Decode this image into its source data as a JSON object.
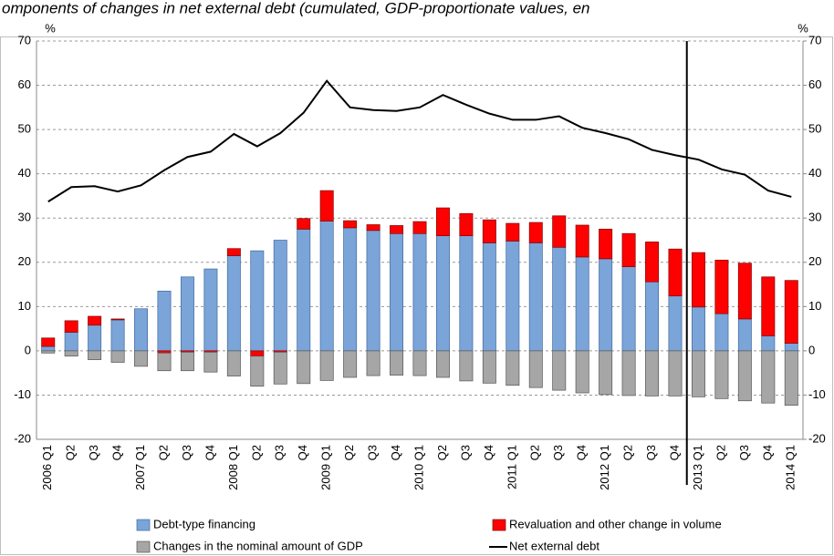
{
  "chart_data": {
    "type": "bar",
    "title": "omponents of changes in net external debt (cumulated, GDP-proportionate values, en",
    "y_unit": "%",
    "y2_unit": "%",
    "categories": [
      "2006 Q1",
      "Q2",
      "Q3",
      "Q4",
      "2007 Q1",
      "Q2",
      "Q3",
      "Q4",
      "2008 Q1",
      "Q2",
      "Q3",
      "Q4",
      "2009 Q1",
      "Q2",
      "Q3",
      "Q4",
      "2010 Q1",
      "Q2",
      "Q3",
      "Q4",
      "2011 Q1",
      "Q2",
      "Q3",
      "Q4",
      "2012 Q1",
      "Q2",
      "Q3",
      "Q4",
      "2013 Q1",
      "Q2",
      "Q3",
      "Q4",
      "2014 Q1"
    ],
    "series": [
      {
        "name": "Debt-type financing",
        "type": "bar",
        "color": "#7ba4d8",
        "values": [
          1.0,
          4.2,
          5.8,
          7.0,
          9.5,
          13.5,
          16.7,
          18.5,
          21.5,
          22.6,
          25.0,
          27.5,
          29.3,
          27.8,
          27.2,
          26.5,
          26.5,
          26.0,
          26.0,
          24.4,
          24.8,
          24.4,
          23.4,
          21.2,
          20.8,
          19.0,
          15.6,
          12.4,
          9.9,
          8.4,
          7.2,
          3.4,
          1.7
        ]
      },
      {
        "name": "Revaluation and other change in volume",
        "type": "bar",
        "color": "#ff0000",
        "values": [
          1.9,
          2.6,
          2.0,
          0.2,
          0.0,
          -0.5,
          -0.3,
          -0.3,
          1.6,
          -1.2,
          -0.3,
          2.4,
          6.9,
          1.6,
          1.3,
          1.8,
          2.7,
          6.3,
          5.0,
          5.2,
          4.0,
          4.6,
          7.1,
          7.2,
          6.7,
          7.5,
          9.0,
          10.6,
          12.3,
          12.1,
          12.6,
          13.3,
          14.2
        ]
      },
      {
        "name": "Changes in the nominal amount of GDP",
        "type": "bar",
        "color": "#a6a6a6",
        "values": [
          -0.5,
          -1.2,
          -2.0,
          -2.6,
          -3.5,
          -4.0,
          -4.2,
          -4.5,
          -5.7,
          -6.8,
          -7.2,
          -7.4,
          -6.7,
          -6.0,
          -5.6,
          -5.5,
          -5.6,
          -6.0,
          -6.8,
          -7.3,
          -7.8,
          -8.3,
          -8.9,
          -9.5,
          -9.9,
          -10.1,
          -10.2,
          -10.2,
          -10.4,
          -10.8,
          -11.3,
          -11.8,
          -12.3
        ]
      },
      {
        "name": "Net external debt",
        "type": "line",
        "color": "#000000",
        "values": [
          33.7,
          37.0,
          37.2,
          36.0,
          37.4,
          40.8,
          43.8,
          45.0,
          49.0,
          46.2,
          49.2,
          53.8,
          61.0,
          55.0,
          54.4,
          54.2,
          55.0,
          57.8,
          55.6,
          53.6,
          52.2,
          52.2,
          53.0,
          50.4,
          49.2,
          47.8,
          45.4,
          44.2,
          43.2,
          41.0,
          39.8,
          36.2,
          34.8
        ]
      }
    ],
    "ylim": [
      -20,
      70
    ],
    "yticks": [
      -20,
      -10,
      0,
      10,
      20,
      30,
      40,
      50,
      60,
      70
    ],
    "y2lim": [
      -20,
      70
    ],
    "y2ticks": [
      -20,
      -10,
      0,
      10,
      20,
      30,
      40,
      50,
      60,
      70
    ],
    "grid": true,
    "legend": "bottom",
    "divider_before": "2013 Q1"
  }
}
